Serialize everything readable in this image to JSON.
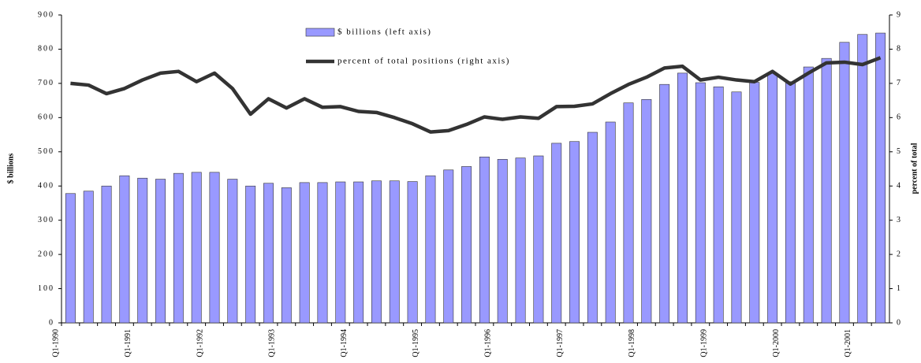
{
  "chart_data": {
    "type": "bar_line",
    "y_label": "$ billions",
    "y2_label": "percent of total",
    "categories": [
      "Q1-1990",
      null,
      null,
      null,
      "Q1-1991",
      null,
      null,
      null,
      "Q1-1992",
      null,
      null,
      null,
      "Q1-1993",
      null,
      null,
      null,
      "Q1-1994",
      null,
      null,
      null,
      "Q1-1995",
      null,
      null,
      null,
      "Q1-1996",
      null,
      null,
      null,
      "Q1-1997",
      null,
      null,
      null,
      "Q1-1998",
      null,
      null,
      null,
      "Q1-1999",
      null,
      null,
      null,
      "Q1-2000",
      null,
      null,
      null,
      "Q1-2001",
      null
    ],
    "series": [
      {
        "name": "$ billions (left axis)",
        "type": "bar",
        "color": "#9999ff",
        "values": [
          378,
          385,
          400,
          430,
          423,
          420,
          437,
          440,
          440,
          420,
          400,
          408,
          395,
          410,
          410,
          412,
          412,
          415,
          415,
          413,
          430,
          447,
          457,
          485,
          478,
          482,
          488,
          525,
          530,
          557,
          587,
          643,
          653,
          697,
          730,
          702,
          690,
          675,
          703,
          730,
          705,
          748,
          773,
          820,
          843,
          847
        ]
      },
      {
        "name": "percent of total positions (right axis)",
        "type": "line",
        "axis": "y2",
        "color": "#333333",
        "values": [
          7.0,
          6.95,
          6.7,
          6.85,
          7.1,
          7.3,
          7.35,
          7.05,
          7.3,
          6.85,
          6.1,
          6.55,
          6.28,
          6.55,
          6.3,
          6.32,
          6.18,
          6.15,
          6.0,
          5.82,
          5.58,
          5.62,
          5.8,
          6.02,
          5.95,
          6.02,
          5.98,
          6.32,
          6.33,
          6.4,
          6.7,
          6.97,
          7.18,
          7.45,
          7.5,
          7.1,
          7.18,
          7.1,
          7.05,
          7.35,
          6.98,
          7.3,
          7.6,
          7.62,
          7.55,
          7.75
        ]
      }
    ],
    "ylim": [
      0,
      900
    ],
    "yticks": [
      0,
      100,
      200,
      300,
      400,
      500,
      600,
      700,
      800,
      900
    ],
    "y2lim": [
      0,
      9
    ],
    "y2ticks": [
      0,
      1,
      2,
      3,
      4,
      5,
      6,
      7,
      8,
      9
    ],
    "grid": false
  }
}
